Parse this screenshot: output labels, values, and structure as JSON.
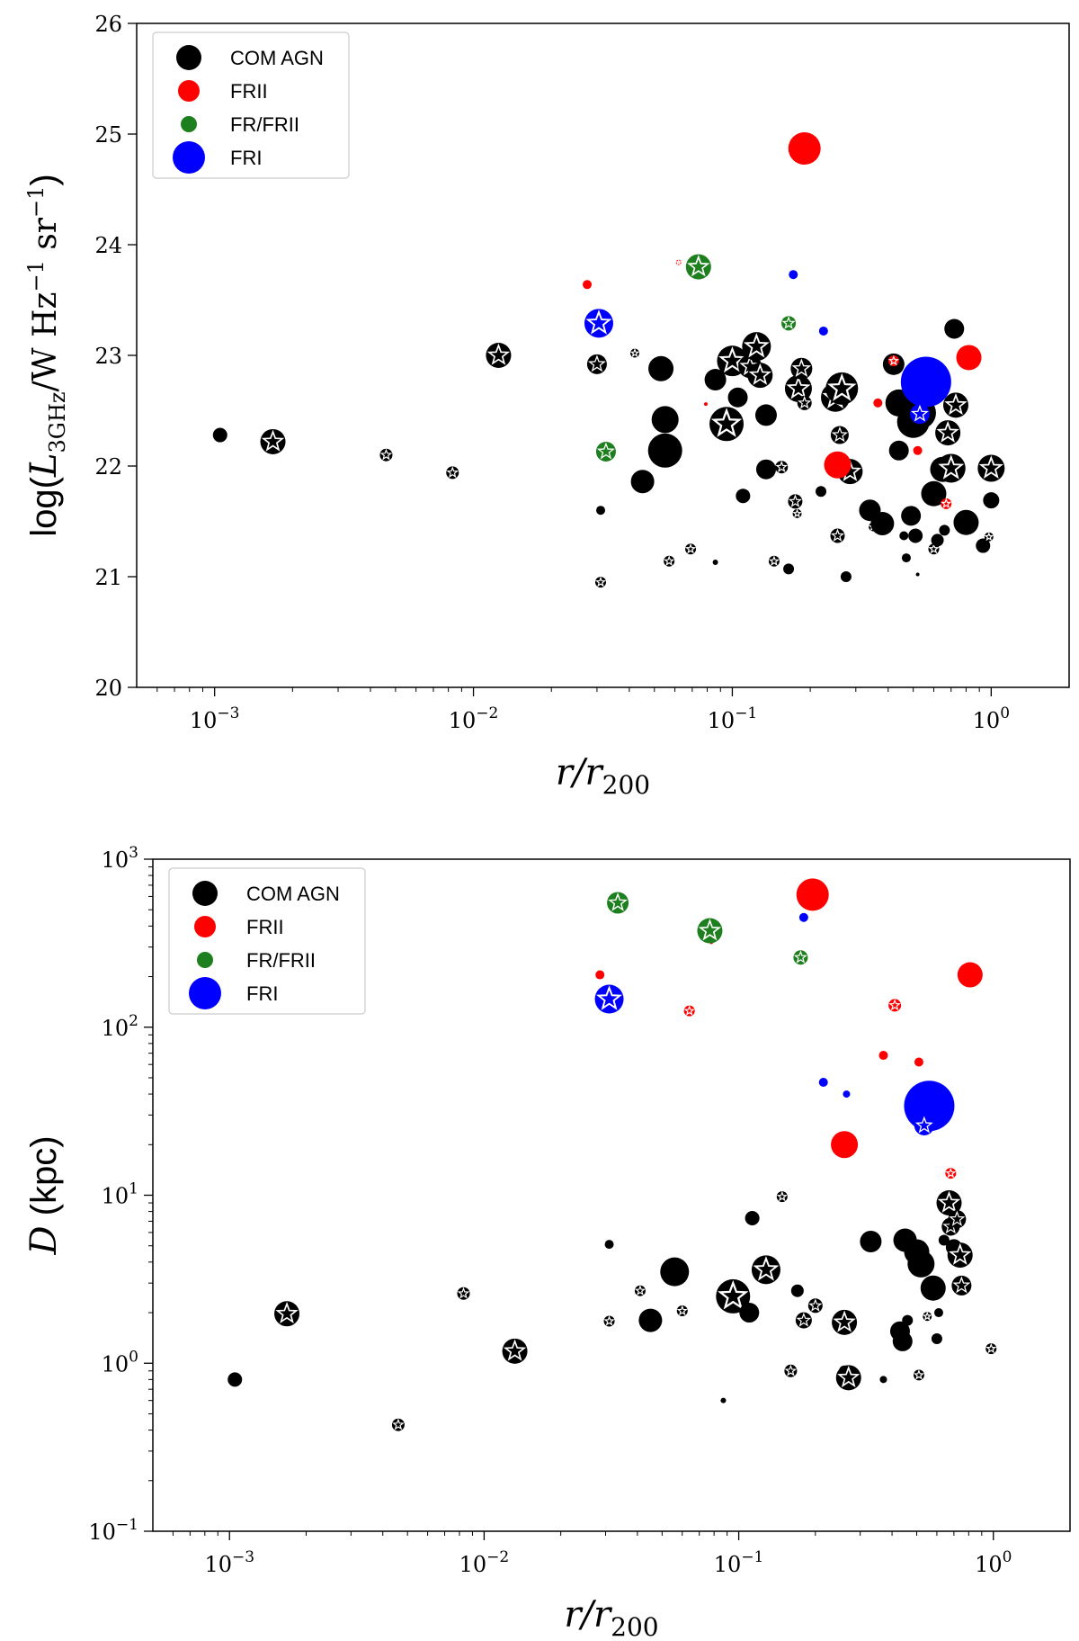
{
  "colors": {
    "com_agn": "#000000",
    "frii": "#ff0000",
    "fr_frii": "#1e7f1e",
    "fri": "#0000ff",
    "star_fill": "#ffffff"
  },
  "chart_data": [
    {
      "type": "scatter",
      "xlabel_main": "r/r",
      "xlabel_sub": "200",
      "ylabel": "log(L3GHz/W Hz−1 sr−1)",
      "ylabel_prefix": "log(",
      "ylabel_L": "L",
      "ylabel_sub": "3GHz",
      "ylabel_unit": "/W Hz",
      "ylabel_exp1": "−1",
      "ylabel_sr": " sr",
      "ylabel_exp2": "−1",
      "ylabel_suffix": ")",
      "xscale": "log",
      "yscale": "linear",
      "xlim": [
        0.0005,
        2.0
      ],
      "ylim": [
        20,
        26
      ],
      "x_ticks": [
        {
          "value": 0.001,
          "base": "10",
          "exp": "−3"
        },
        {
          "value": 0.01,
          "base": "10",
          "exp": "−2"
        },
        {
          "value": 0.1,
          "base": "10",
          "exp": "−1"
        },
        {
          "value": 1,
          "base": "10",
          "exp": "0"
        }
      ],
      "y_ticks": [
        {
          "value": 20,
          "label": "20"
        },
        {
          "value": 21,
          "label": "21"
        },
        {
          "value": 22,
          "label": "22"
        },
        {
          "value": 23,
          "label": "23"
        },
        {
          "value": 24,
          "label": "24"
        },
        {
          "value": 25,
          "label": "25"
        },
        {
          "value": 26,
          "label": "26"
        }
      ],
      "legend_position": "top-left",
      "legend": [
        {
          "label": "COM AGN",
          "series": "com_agn"
        },
        {
          "label": "FRII",
          "series": "frii"
        },
        {
          "label": "FR/FRII",
          "series": "fr_frii"
        },
        {
          "label": "FRI",
          "series": "fri"
        }
      ],
      "series": [
        {
          "name": "COM AGN",
          "key": "com_agn",
          "points": [
            [
              0.00105,
              22.28,
              8,
              0
            ],
            [
              0.00168,
              22.22,
              14,
              1
            ],
            [
              0.0046,
              22.1,
              7,
              1
            ],
            [
              0.0083,
              21.94,
              7,
              1
            ],
            [
              0.0125,
              23.0,
              14,
              1
            ],
            [
              0.03,
              22.92,
              11,
              1
            ],
            [
              0.031,
              21.6,
              5,
              0
            ],
            [
              0.031,
              20.95,
              6,
              1
            ],
            [
              0.042,
              23.02,
              5,
              1
            ],
            [
              0.045,
              21.86,
              13,
              0
            ],
            [
              0.053,
              22.88,
              14,
              0
            ],
            [
              0.055,
              22.42,
              15,
              0
            ],
            [
              0.055,
              22.14,
              19,
              0
            ],
            [
              0.057,
              21.14,
              6,
              1
            ],
            [
              0.069,
              21.25,
              6,
              1
            ],
            [
              0.086,
              22.78,
              12,
              0
            ],
            [
              0.086,
              21.13,
              3,
              0
            ],
            [
              0.095,
              22.38,
              19,
              1
            ],
            [
              0.1,
              22.95,
              17,
              1
            ],
            [
              0.105,
              22.62,
              11,
              0
            ],
            [
              0.11,
              21.73,
              8,
              0
            ],
            [
              0.117,
              22.9,
              13,
              1
            ],
            [
              0.124,
              23.08,
              16,
              1
            ],
            [
              0.128,
              22.82,
              14,
              1
            ],
            [
              0.135,
              21.97,
              11,
              0
            ],
            [
              0.135,
              22.46,
              12,
              0
            ],
            [
              0.145,
              21.14,
              6,
              1
            ],
            [
              0.155,
              21.99,
              7,
              1
            ],
            [
              0.165,
              21.07,
              6,
              0
            ],
            [
              0.175,
              21.68,
              8,
              1
            ],
            [
              0.178,
              21.57,
              5,
              1
            ],
            [
              0.18,
              22.7,
              15,
              1
            ],
            [
              0.185,
              22.88,
              12,
              1
            ],
            [
              0.19,
              22.57,
              8,
              1
            ],
            [
              0.22,
              21.77,
              6,
              0
            ],
            [
              0.25,
              22.62,
              16,
              1
            ],
            [
              0.255,
              21.37,
              8,
              1
            ],
            [
              0.26,
              22.28,
              10,
              1
            ],
            [
              0.265,
              22.7,
              18,
              1
            ],
            [
              0.275,
              21.0,
              6,
              0
            ],
            [
              0.285,
              21.95,
              14,
              1
            ],
            [
              0.34,
              21.6,
              12,
              0
            ],
            [
              0.35,
              21.45,
              5,
              1
            ],
            [
              0.38,
              21.48,
              13,
              0
            ],
            [
              0.42,
              22.92,
              12,
              0
            ],
            [
              0.44,
              22.14,
              11,
              0
            ],
            [
              0.44,
              22.57,
              15,
              0
            ],
            [
              0.46,
              21.37,
              5,
              0
            ],
            [
              0.47,
              21.17,
              5,
              0
            ],
            [
              0.49,
              21.55,
              11,
              0
            ],
            [
              0.5,
              22.4,
              18,
              0
            ],
            [
              0.51,
              21.37,
              8,
              0
            ],
            [
              0.52,
              21.02,
              2,
              0
            ],
            [
              0.53,
              22.48,
              18,
              0
            ],
            [
              0.55,
              22.72,
              12,
              1
            ],
            [
              0.6,
              21.25,
              6,
              1
            ],
            [
              0.6,
              21.75,
              14,
              0
            ],
            [
              0.62,
              21.33,
              7,
              0
            ],
            [
              0.65,
              21.97,
              14,
              0
            ],
            [
              0.66,
              21.42,
              6,
              0
            ],
            [
              0.68,
              22.3,
              14,
              1
            ],
            [
              0.7,
              21.98,
              16,
              1
            ],
            [
              0.72,
              23.24,
              11,
              0
            ],
            [
              0.73,
              22.55,
              14,
              1
            ],
            [
              0.8,
              21.49,
              14,
              0
            ],
            [
              0.93,
              21.28,
              8,
              0
            ],
            [
              0.98,
              21.36,
              5,
              1
            ],
            [
              1.0,
              21.69,
              9,
              0
            ],
            [
              1.0,
              21.98,
              15,
              1
            ]
          ]
        },
        {
          "name": "FRII",
          "key": "frii",
          "points": [
            [
              0.0275,
              23.64,
              5,
              0
            ],
            [
              0.062,
              23.84,
              3,
              1
            ],
            [
              0.079,
              22.56,
              2,
              0
            ],
            [
              0.19,
              24.87,
              18,
              0
            ],
            [
              0.255,
              22.01,
              15,
              0
            ],
            [
              0.365,
              22.57,
              5,
              0
            ],
            [
              0.42,
              22.95,
              6,
              1
            ],
            [
              0.52,
              22.14,
              5,
              0
            ],
            [
              0.67,
              21.66,
              6,
              1
            ],
            [
              0.82,
              22.98,
              14,
              0
            ]
          ]
        },
        {
          "name": "FR/FRII",
          "key": "fr_frii",
          "points": [
            [
              0.0325,
              22.13,
              11,
              1
            ],
            [
              0.074,
              23.8,
              14,
              1
            ],
            [
              0.165,
              23.29,
              8,
              1
            ]
          ]
        },
        {
          "name": "FRI",
          "key": "fri",
          "points": [
            [
              0.0305,
              23.29,
              16,
              1
            ],
            [
              0.172,
              23.73,
              5,
              0
            ],
            [
              0.225,
              23.22,
              5,
              0
            ],
            [
              0.56,
              22.76,
              28,
              0
            ],
            [
              0.53,
              22.47,
              11,
              1
            ]
          ]
        }
      ]
    },
    {
      "type": "scatter",
      "xlabel_main": "r/r",
      "xlabel_sub": "200",
      "ylabel": "D (kpc)",
      "ylabel_D": "D",
      "ylabel_unit": " (kpc)",
      "xscale": "log",
      "yscale": "log",
      "xlim": [
        0.0005,
        2.0
      ],
      "ylim": [
        0.1,
        1000
      ],
      "x_ticks": [
        {
          "value": 0.001,
          "base": "10",
          "exp": "−3"
        },
        {
          "value": 0.01,
          "base": "10",
          "exp": "−2"
        },
        {
          "value": 0.1,
          "base": "10",
          "exp": "−1"
        },
        {
          "value": 1,
          "base": "10",
          "exp": "0"
        }
      ],
      "y_ticks": [
        {
          "value": 0.1,
          "base": "10",
          "exp": "−1"
        },
        {
          "value": 1,
          "base": "10",
          "exp": "0"
        },
        {
          "value": 10,
          "base": "10",
          "exp": "1"
        },
        {
          "value": 100,
          "base": "10",
          "exp": "2"
        },
        {
          "value": 1000,
          "base": "10",
          "exp": "3"
        }
      ],
      "legend_position": "top-left",
      "legend": [
        {
          "label": "COM AGN",
          "series": "com_agn"
        },
        {
          "label": "FRII",
          "series": "frii"
        },
        {
          "label": "FR/FRII",
          "series": "fr_frii"
        },
        {
          "label": "FRI",
          "series": "fri"
        }
      ],
      "series": [
        {
          "name": "COM AGN",
          "key": "com_agn",
          "points": [
            [
              0.00105,
              0.8,
              8,
              0
            ],
            [
              0.00168,
              1.97,
              14,
              1
            ],
            [
              0.0046,
              0.43,
              7,
              1
            ],
            [
              0.0083,
              2.6,
              7,
              1
            ],
            [
              0.0132,
              1.18,
              14,
              1
            ],
            [
              0.031,
              5.1,
              5,
              0
            ],
            [
              0.031,
              1.78,
              6,
              1
            ],
            [
              0.041,
              2.7,
              6,
              1
            ],
            [
              0.045,
              1.8,
              13,
              0
            ],
            [
              0.056,
              3.5,
              16,
              0
            ],
            [
              0.06,
              2.05,
              6,
              1
            ],
            [
              0.087,
              0.6,
              3,
              0
            ],
            [
              0.095,
              2.5,
              19,
              1
            ],
            [
              0.11,
              2.0,
              11,
              0
            ],
            [
              0.113,
              7.3,
              8,
              0
            ],
            [
              0.128,
              3.6,
              16,
              1
            ],
            [
              0.148,
              9.8,
              6,
              1
            ],
            [
              0.16,
              0.9,
              7,
              1
            ],
            [
              0.17,
              2.7,
              7,
              0
            ],
            [
              0.18,
              1.8,
              9,
              1
            ],
            [
              0.2,
              2.2,
              8,
              1
            ],
            [
              0.26,
              0.9,
              6,
              0
            ],
            [
              0.26,
              1.75,
              14,
              1
            ],
            [
              0.27,
              0.82,
              14,
              1
            ],
            [
              0.33,
              5.3,
              12,
              0
            ],
            [
              0.37,
              0.8,
              4,
              0
            ],
            [
              0.43,
              1.55,
              11,
              0
            ],
            [
              0.44,
              1.35,
              11,
              0
            ],
            [
              0.45,
              5.4,
              13,
              0
            ],
            [
              0.46,
              1.8,
              6,
              0
            ],
            [
              0.5,
              4.6,
              14,
              0
            ],
            [
              0.51,
              0.85,
              6,
              1
            ],
            [
              0.52,
              3.9,
              15,
              0
            ],
            [
              0.55,
              1.9,
              5,
              1
            ],
            [
              0.58,
              2.8,
              14,
              0
            ],
            [
              0.6,
              1.4,
              6,
              0
            ],
            [
              0.61,
              2.0,
              5,
              0
            ],
            [
              0.64,
              5.4,
              6,
              0
            ],
            [
              0.67,
              9.0,
              14,
              1
            ],
            [
              0.68,
              6.5,
              10,
              1
            ],
            [
              0.7,
              4.9,
              9,
              0
            ],
            [
              0.72,
              7.2,
              10,
              1
            ],
            [
              0.74,
              4.4,
              14,
              1
            ],
            [
              0.75,
              2.9,
              11,
              1
            ],
            [
              0.98,
              1.22,
              6,
              1
            ]
          ]
        },
        {
          "name": "FRII",
          "key": "frii",
          "points": [
            [
              0.0285,
              205,
              5,
              0
            ],
            [
              0.064,
              125,
              6,
              1
            ],
            [
              0.078,
              320,
              2,
              0
            ],
            [
              0.195,
              615,
              18,
              0
            ],
            [
              0.26,
              20,
              15,
              0
            ],
            [
              0.37,
              68,
              5,
              0
            ],
            [
              0.41,
              135,
              7,
              1
            ],
            [
              0.51,
              62,
              5,
              0
            ],
            [
              0.68,
              13.5,
              6,
              1
            ],
            [
              0.81,
              205,
              14,
              0
            ]
          ]
        },
        {
          "name": "FR/FRII",
          "key": "fr_frii",
          "points": [
            [
              0.0335,
              550,
              12,
              1
            ],
            [
              0.077,
              375,
              14,
              1
            ],
            [
              0.175,
              260,
              8,
              1
            ]
          ]
        },
        {
          "name": "FRI",
          "key": "fri",
          "points": [
            [
              0.031,
              147,
              16,
              1
            ],
            [
              0.18,
              450,
              5,
              0
            ],
            [
              0.215,
              47,
              5,
              0
            ],
            [
              0.265,
              40,
              4,
              0
            ],
            [
              0.56,
              34,
              28,
              0
            ],
            [
              0.535,
              26,
              11,
              1
            ]
          ]
        }
      ]
    }
  ]
}
